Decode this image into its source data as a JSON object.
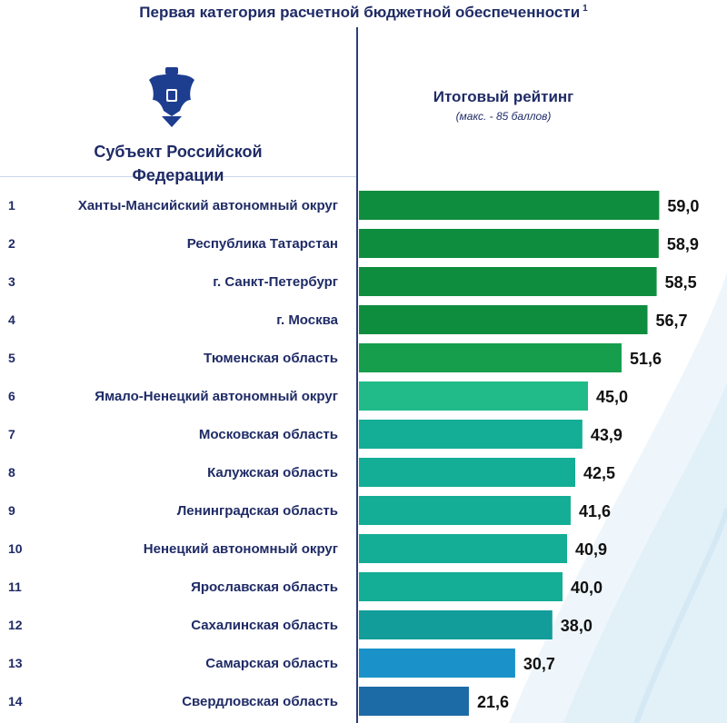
{
  "title": "Первая категория расчетной бюджетной обеспеченности",
  "title_footnote": "1",
  "header": {
    "subject_line1": "Субъект Российской",
    "subject_line2": "Федерации",
    "rating": "Итоговый рейтинг",
    "rating_note": "(макс. - 85 баллов)"
  },
  "chart_data": {
    "type": "bar",
    "orientation": "horizontal",
    "ranks": [
      "1",
      "2",
      "3",
      "4",
      "5",
      "6",
      "7",
      "8",
      "9",
      "10",
      "11",
      "12",
      "13",
      "14"
    ],
    "categories": [
      "Ханты-Мансийский автономный округ",
      "Республика Татарстан",
      "г. Санкт-Петербург",
      "г. Москва",
      "Тюменская область",
      "Ямало-Ненецкий автономный округ",
      "Московская область",
      "Калужская область",
      "Ленинградская область",
      "Ненецкий автономный округ",
      "Ярославская область",
      "Сахалинская область",
      "Самарская область",
      "Свердловская область"
    ],
    "values": [
      59.0,
      58.9,
      58.5,
      56.7,
      51.6,
      45.0,
      43.9,
      42.5,
      41.6,
      40.9,
      40.0,
      38.0,
      30.7,
      21.6
    ],
    "value_labels": [
      "59,0",
      "58,9",
      "58,5",
      "56,7",
      "51,6",
      "45,0",
      "43,9",
      "42,5",
      "41,6",
      "40,9",
      "40,0",
      "38,0",
      "30,7",
      "21,6"
    ],
    "colors": [
      "#0f8d3e",
      "#0f8d3e",
      "#0f8d3e",
      "#0f8d3e",
      "#169e4c",
      "#20bb88",
      "#14ad96",
      "#14ad96",
      "#14ad96",
      "#14ad96",
      "#14ad96",
      "#139d9a",
      "#1a92c9",
      "#1c6ba6"
    ],
    "xlim": [
      0,
      85
    ],
    "grid": false,
    "legend": "none"
  }
}
